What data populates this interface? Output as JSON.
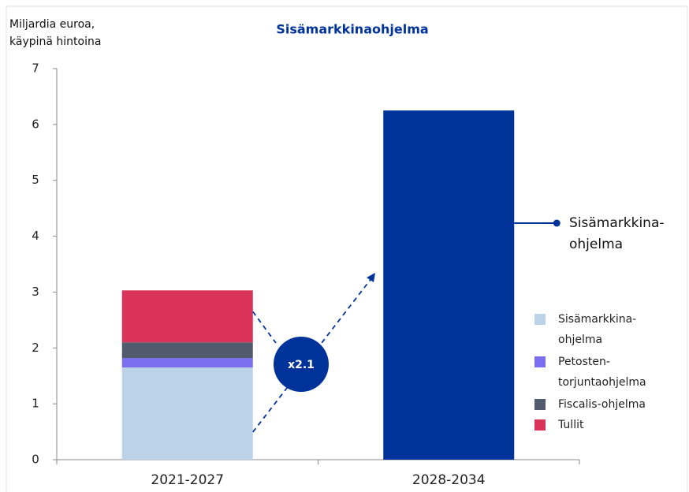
{
  "chart_data": {
    "type": "stacked-bar",
    "title": "Sisämarkkinaohjelma",
    "y_label": "Miljardia euroa, käypinä hintoina",
    "categories": [
      "2021-2027",
      "2028-2034"
    ],
    "series": [
      {
        "name": "Sisämarkkina-ohjelma",
        "color": "#bcd2e8",
        "values": [
          1.65,
          null
        ]
      },
      {
        "name": "Petosten-torjuntaohjelma",
        "color": "#7b6ff0",
        "values": [
          0.17,
          null
        ]
      },
      {
        "name": "Fiscalis-ohjelma",
        "color": "#525a6e",
        "values": [
          0.28,
          null
        ]
      },
      {
        "name": "Tullit",
        "color": "#d9335a",
        "values": [
          0.93,
          null
        ]
      },
      {
        "name": "Sisämarkkina-ohjelma",
        "color": "#003399",
        "values": [
          null,
          6.25
        ],
        "legend": false
      }
    ],
    "multiplier": "x2.1",
    "ylim": [
      0,
      7
    ],
    "yticks": [
      0,
      1,
      2,
      3,
      4,
      5,
      6,
      7
    ]
  }
}
